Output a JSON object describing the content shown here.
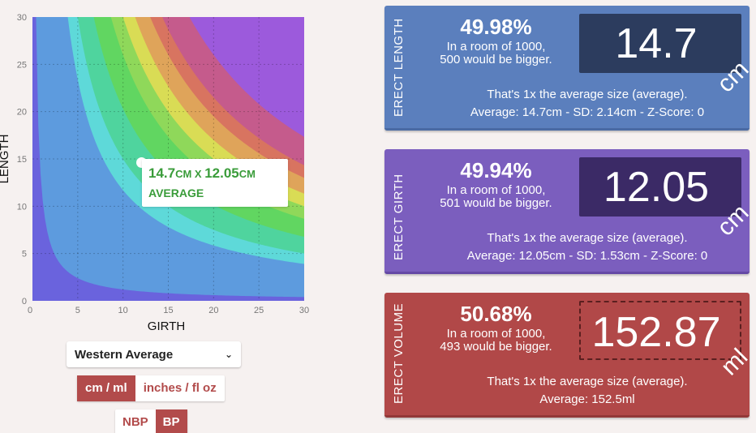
{
  "chart": {
    "ylabel": "LENGTH",
    "xlabel": "GIRTH",
    "x_ticks": [
      "0",
      "5",
      "10",
      "15",
      "20",
      "25",
      "30"
    ],
    "y_ticks": [
      "0",
      "5",
      "10",
      "15",
      "20",
      "25",
      "30"
    ],
    "bands": [
      {
        "product": 0,
        "color": "#6a63dd"
      },
      {
        "product": 12,
        "color": "#5d9bde"
      },
      {
        "product": 117,
        "color": "#5ed9d9"
      },
      {
        "product": 150,
        "color": "#4fd49e"
      },
      {
        "product": 203,
        "color": "#61d661"
      },
      {
        "product": 260,
        "color": "#8fd85a"
      },
      {
        "product": 300,
        "color": "#d9dc55"
      },
      {
        "product": 340,
        "color": "#dfa45a"
      },
      {
        "product": 390,
        "color": "#d87460"
      },
      {
        "product": 430,
        "color": "#c55b8c"
      },
      {
        "product": 520,
        "color": "#9c5adc"
      }
    ]
  },
  "chart_data": {
    "type": "area",
    "xlabel": "GIRTH",
    "ylabel": "LENGTH",
    "xlim": [
      0,
      30
    ],
    "ylim": [
      0,
      30
    ],
    "grid": true,
    "point": {
      "x": 12.05,
      "y": 14.7
    }
  },
  "tooltip": {
    "length_num": "14.7",
    "length_unit": "CM",
    "sep": " X ",
    "girth_num": "12.05",
    "girth_unit": "CM",
    "label": "AVERAGE"
  },
  "controls": {
    "region_selected": "Western Average",
    "chevron": "⌄",
    "unit_metric": "cm / ml",
    "unit_imperial": "inches / fl oz",
    "nbp": "NBP",
    "bp": "BP"
  },
  "cards": {
    "length": {
      "label": "ERECT LENGTH",
      "pct": "49.98%",
      "room1": "In a room of 1000,",
      "room2": "500 would be bigger.",
      "value": "14.7",
      "unit": "cm",
      "line1": "That's 1x the average size (average).",
      "line2": "Average: 14.7cm - SD: 2.14cm - Z-Score: 0"
    },
    "girth": {
      "label": "ERECT GIRTH",
      "pct": "49.94%",
      "room1": "In a room of 1000,",
      "room2": "501 would be bigger.",
      "value": "12.05",
      "unit": "cm",
      "line1": "That's 1x the average size (average).",
      "line2": "Average: 12.05cm - SD: 1.53cm - Z-Score: 0"
    },
    "volume": {
      "label": "ERECT VOLUME",
      "pct": "50.68%",
      "room1": "In a room of 1000,",
      "room2": "493 would be bigger.",
      "value": "152.87",
      "unit": "ml",
      "line1": "That's 1x the average size (average).",
      "line2": "Average: 152.5ml"
    }
  }
}
